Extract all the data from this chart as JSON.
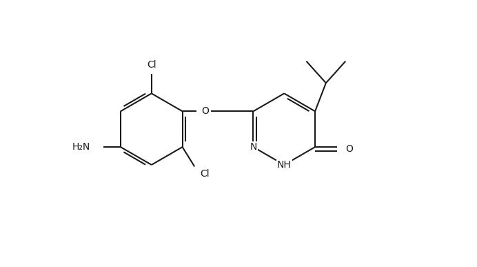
{
  "bg_color": "#ffffff",
  "line_color": "#1a1a1a",
  "line_width": 1.5,
  "font_size": 10,
  "figsize": [
    6.92,
    3.87
  ],
  "dpi": 100,
  "xlim": [
    0,
    10
  ],
  "ylim": [
    0,
    6
  ]
}
